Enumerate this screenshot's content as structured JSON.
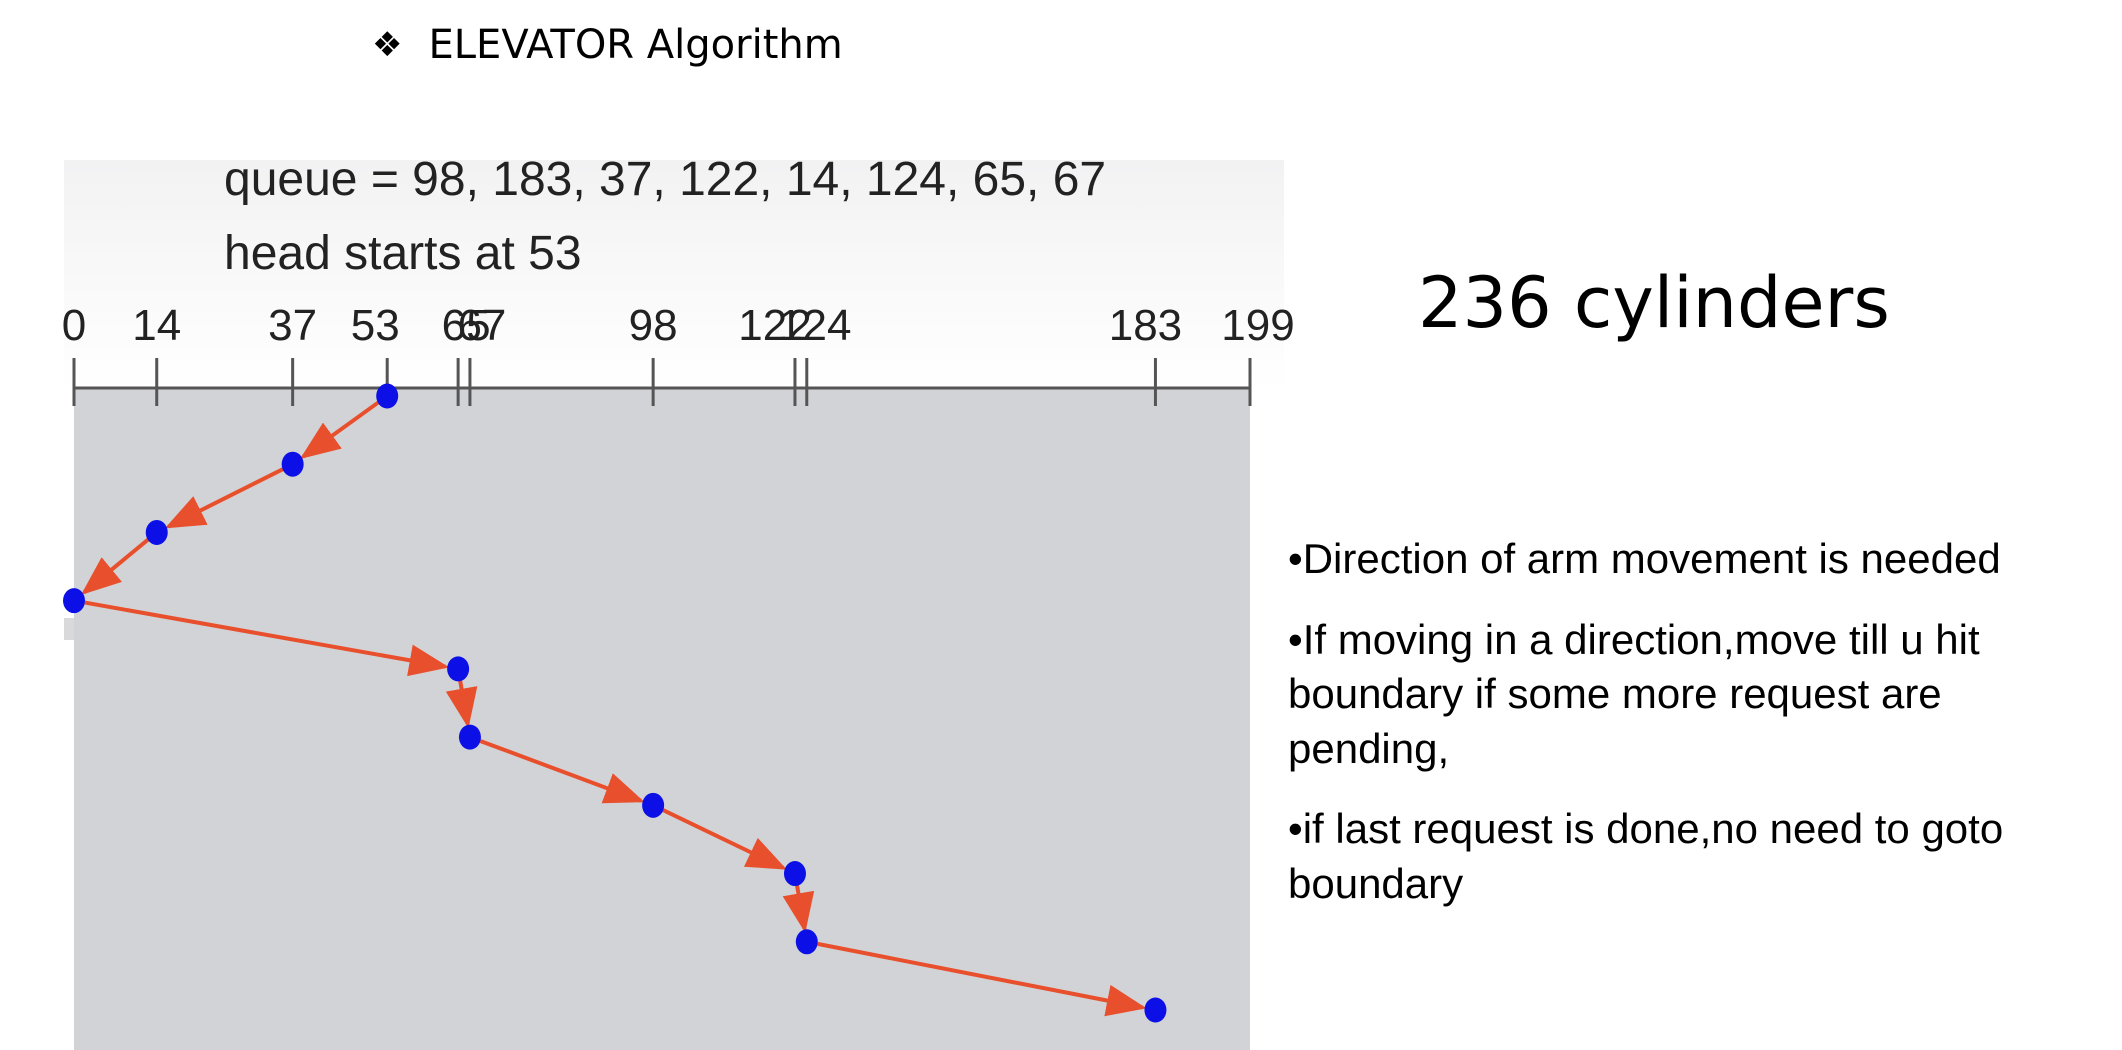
{
  "heading": {
    "bullet": "❖",
    "title": "ELEVATOR Algorithm"
  },
  "diagram": {
    "queue_label": "queue = 98, 183, 37, 122, 14, 124, 65, 67",
    "head_label": "head starts at 53",
    "axis_ticks": [
      "0",
      "14",
      "37",
      "53",
      "65",
      "67",
      "98",
      "122",
      "124",
      "183",
      "199"
    ],
    "axis_range": [
      0,
      199
    ],
    "head_start": 53,
    "service_order": [
      53,
      37,
      14,
      0,
      65,
      67,
      98,
      122,
      124,
      183
    ],
    "colors": {
      "panel": "#d2d3d6",
      "axis": "#555555",
      "arrow": "#e8502d",
      "point": "#0c10e6"
    }
  },
  "result": {
    "total": "236 cylinders"
  },
  "notes": [
    "•Direction of arm movement is needed",
    "•If moving in a direction,move till u hit boundary if some more request are pending,",
    "•if last request is done,no need to goto boundary"
  ]
}
